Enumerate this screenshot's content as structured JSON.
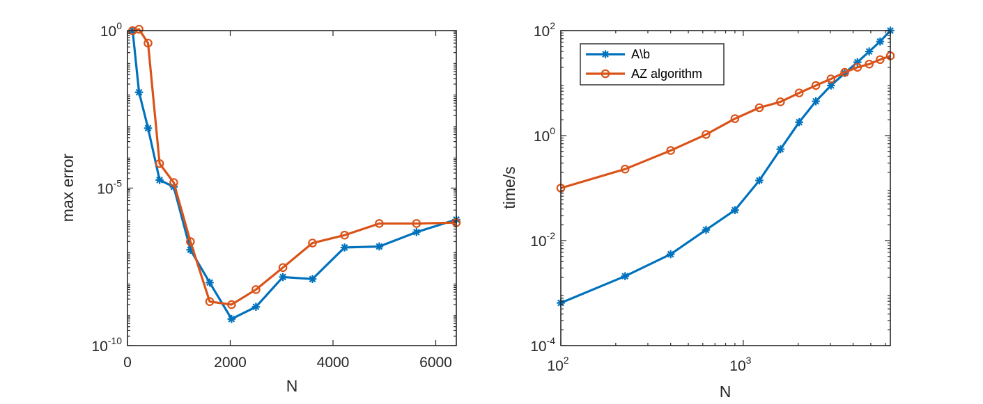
{
  "chart_data": [
    {
      "type": "line",
      "xscale": "linear",
      "yscale": "log",
      "xlabel": "N",
      "ylabel": "max error",
      "xlim": [
        0,
        6400
      ],
      "ylim": [
        1e-10,
        1
      ],
      "xticks": [
        {
          "value": 0,
          "label": "0"
        },
        {
          "value": 2000,
          "label": "2000"
        },
        {
          "value": 4000,
          "label": "4000"
        },
        {
          "value": 6000,
          "label": "6000"
        }
      ],
      "yticks": [
        {
          "value": 1,
          "base": "10",
          "exp": "0"
        },
        {
          "value": 1e-05,
          "base": "10",
          "exp": "-5"
        },
        {
          "value": 1e-10,
          "base": "10",
          "exp": "-10"
        }
      ],
      "series": [
        {
          "name": "A\\b",
          "color": "#0072BD",
          "marker": "asterisk",
          "x": [
            100,
            225,
            400,
            625,
            900,
            1225,
            1600,
            2025,
            2500,
            3025,
            3600,
            4225,
            4900,
            5625,
            6400
          ],
          "y": [
            1.0,
            0.011,
            0.0008,
            1.8e-05,
            1.1e-05,
            1.1e-07,
            1e-08,
            7e-10,
            1.7e-09,
            1.5e-08,
            1.3e-08,
            1.3e-07,
            1.4e-07,
            4e-07,
            1e-06
          ]
        },
        {
          "name": "AZ algorithm",
          "color": "#D95319",
          "marker": "circle",
          "x": [
            100,
            225,
            400,
            625,
            900,
            1225,
            1600,
            2025,
            2500,
            3025,
            3600,
            4225,
            4900,
            5625,
            6400
          ],
          "y": [
            1.0,
            1.1,
            0.4,
            6e-05,
            1.5e-05,
            2e-07,
            2.5e-09,
            2e-09,
            6e-09,
            3e-08,
            1.8e-07,
            3.2e-07,
            7.5e-07,
            7.5e-07,
            8e-07
          ]
        }
      ]
    },
    {
      "type": "line",
      "xscale": "log",
      "yscale": "log",
      "xlabel": "N",
      "ylabel": "time/s",
      "xlim": [
        100,
        6400
      ],
      "ylim": [
        0.0001,
        100
      ],
      "xticks": [
        {
          "value": 100,
          "base": "10",
          "exp": "2"
        },
        {
          "value": 1000,
          "base": "10",
          "exp": "3"
        }
      ],
      "yticks": [
        {
          "value": 100,
          "base": "10",
          "exp": "2"
        },
        {
          "value": 1,
          "base": "10",
          "exp": "0"
        },
        {
          "value": 0.01,
          "base": "10",
          "exp": "-2"
        },
        {
          "value": 0.0001,
          "base": "10",
          "exp": "-4"
        }
      ],
      "legend_position": "top-left",
      "series": [
        {
          "name": "A\\b",
          "color": "#0072BD",
          "marker": "asterisk",
          "x": [
            100,
            225,
            400,
            625,
            900,
            1225,
            1600,
            2025,
            2500,
            3025,
            3600,
            4225,
            4900,
            5625,
            6400
          ],
          "y": [
            0.00065,
            0.0021,
            0.0055,
            0.016,
            0.038,
            0.14,
            0.55,
            1.8,
            4.5,
            9.0,
            15.5,
            25,
            40,
            62,
            100
          ]
        },
        {
          "name": "AZ algorithm",
          "color": "#D95319",
          "marker": "circle",
          "x": [
            100,
            225,
            400,
            625,
            900,
            1225,
            1600,
            2025,
            2500,
            3025,
            3600,
            4225,
            4900,
            5625,
            6400
          ],
          "y": [
            0.1,
            0.23,
            0.52,
            1.05,
            2.1,
            3.4,
            4.4,
            6.5,
            9.0,
            12.0,
            16.0,
            20.0,
            23.0,
            28.0,
            33.0
          ]
        }
      ]
    }
  ]
}
